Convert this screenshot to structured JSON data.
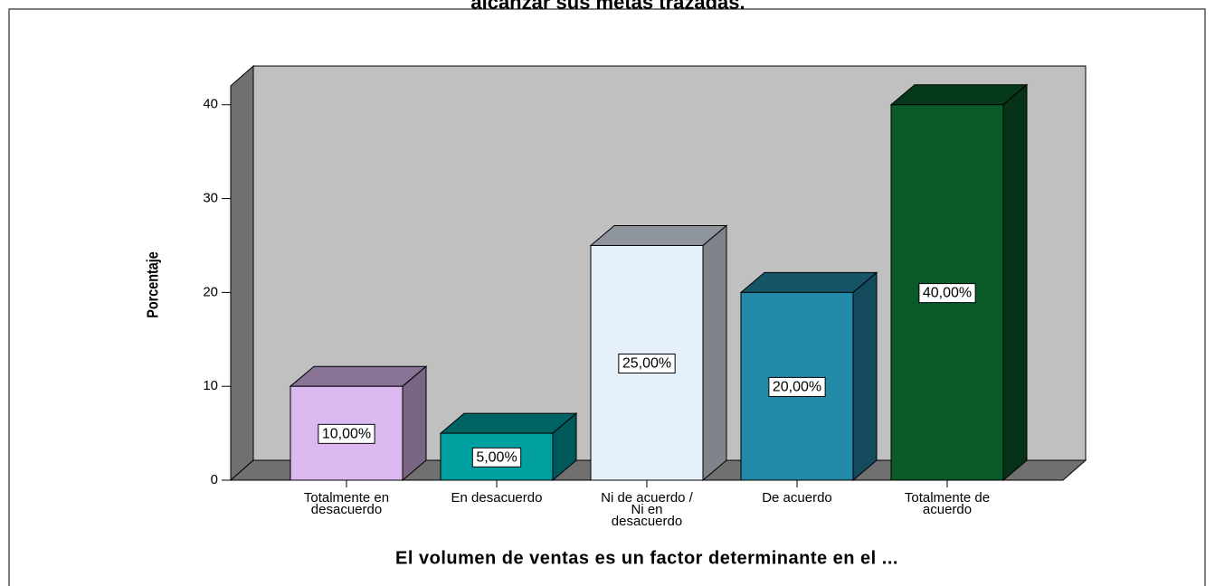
{
  "chart_data": {
    "type": "bar3d",
    "title": "alcanzar sus metas trazadas.",
    "x_label": "El volumen de ventas es un factor determinante en el ...",
    "y_label": "Porcentaje",
    "categories": [
      "Totalmente en\ndesacuerdo",
      "En desacuerdo",
      "Ni de acuerdo /\nNi en\ndesacuerdo",
      "De acuerdo",
      "Totalmente de\nacuerdo"
    ],
    "values": [
      10,
      5,
      25,
      20,
      40
    ],
    "value_labels": [
      "10,00%",
      "5,00%",
      "25,00%",
      "20,00%",
      "40,00%"
    ],
    "colors": [
      "#dcb8f0",
      "#00a0a0",
      "#e6f0fb",
      "#2389a8",
      "#0a5a2a"
    ],
    "ylim": [
      0,
      42
    ],
    "yticks": [
      0,
      10,
      20,
      30,
      40
    ]
  }
}
